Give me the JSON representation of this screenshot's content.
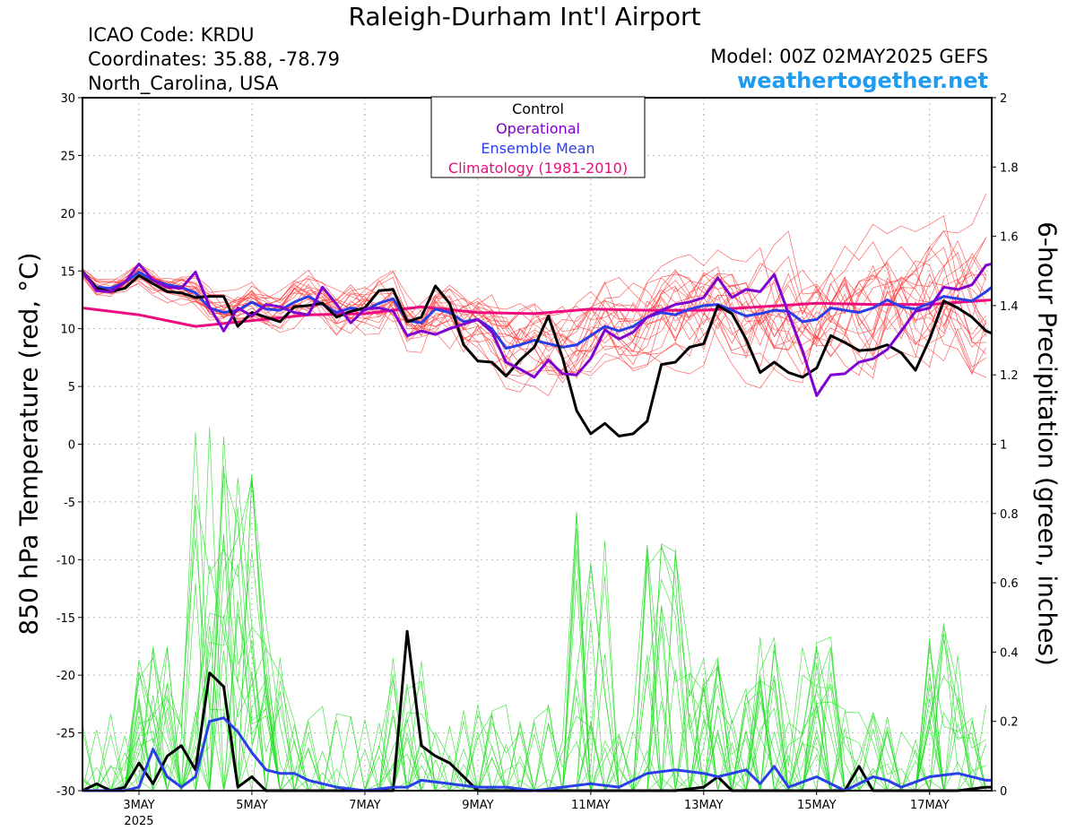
{
  "header": {
    "title": "Raleigh-Durham Int'l Airport",
    "icao": "ICAO Code: KRDU",
    "coords": "Coordinates: 35.88, -78.79",
    "region": "North_Carolina, USA",
    "model": "Model: 00Z 02MAY2025 GEFS",
    "site": "weathertogether.net"
  },
  "colors": {
    "control": "#000000",
    "operational": "#8000d0",
    "ensemble_mean": "#2a3fe8",
    "climatology": "#ec0a7e",
    "members_temp": "#ff3030",
    "members_precip": "#22dd22",
    "site": "#1f9bf0"
  },
  "chart_data": {
    "type": "line",
    "title": "Raleigh-Durham Int'l Airport",
    "ylabel_left": "850 hPa Temperature (red, °C)",
    "ylabel_right": "6-hour Precipitation (green, inches)",
    "ylim_left": [
      -30,
      30
    ],
    "ylim_right": [
      0,
      2
    ],
    "yticks_left": [
      30,
      25,
      20,
      15,
      10,
      5,
      0,
      -5,
      -10,
      -15,
      -20,
      -25,
      -30
    ],
    "yticks_right": [
      2,
      1.8,
      1.6,
      1.4,
      1.2,
      1,
      0.8,
      0.6,
      0.4,
      0.2,
      0
    ],
    "x_start_day": 2,
    "x_end_day": 18.1,
    "xticks": [
      {
        "day": 3,
        "label": "3MAY",
        "sublabel": "2025"
      },
      {
        "day": 5,
        "label": "5MAY",
        "sublabel": ""
      },
      {
        "day": 7,
        "label": "7MAY",
        "sublabel": ""
      },
      {
        "day": 9,
        "label": "9MAY",
        "sublabel": ""
      },
      {
        "day": 11,
        "label": "11MAY",
        "sublabel": ""
      },
      {
        "day": 13,
        "label": "13MAY",
        "sublabel": ""
      },
      {
        "day": 15,
        "label": "15MAY",
        "sublabel": ""
      },
      {
        "day": 17,
        "label": "17MAY",
        "sublabel": ""
      }
    ],
    "grid": true,
    "legend": {
      "placement": "top-center",
      "items": [
        "Control",
        "Operational",
        "Ensemble Mean",
        "Climatology (1981-2010)"
      ]
    },
    "temperature_series": [
      {
        "name": "Control",
        "x": [
          2,
          2.25,
          2.5,
          2.75,
          3,
          3.25,
          3.5,
          3.75,
          4,
          4.25,
          4.5,
          4.75,
          5,
          5.25,
          5.5,
          5.75,
          6,
          6.25,
          6.5,
          6.75,
          7,
          7.25,
          7.5,
          7.75,
          8,
          8.25,
          8.5,
          8.75,
          9,
          9.25,
          9.5,
          9.75,
          10,
          10.25,
          10.5,
          10.75,
          11,
          11.25,
          11.5,
          11.75,
          12,
          12.25,
          12.5,
          12.75,
          13,
          13.25,
          13.5,
          13.75,
          14,
          14.25,
          14.5,
          14.75,
          15,
          15.25,
          15.5,
          15.75,
          16,
          16.25,
          16.5,
          16.75,
          17,
          17.25,
          17.5,
          17.75,
          18,
          18.1
        ],
        "y": [
          15,
          13.5,
          13.2,
          13.5,
          14.6,
          13.9,
          13.2,
          13.1,
          12.7,
          12.8,
          12.8,
          10.2,
          11.4,
          11,
          10.6,
          11.9,
          12,
          12.2,
          11,
          11.5,
          11.8,
          13.3,
          13.4,
          10.6,
          11,
          13.7,
          12.2,
          8.6,
          7.2,
          7.1,
          5.9,
          7.3,
          8.4,
          11.1,
          7.5,
          2.9,
          0.9,
          1.8,
          0.7,
          0.9,
          2,
          6.9,
          7.1,
          8.4,
          8.7,
          12,
          11.3,
          9.1,
          6.2,
          7.1,
          6.2,
          5.8,
          6.6,
          9.4,
          8.8,
          8.1,
          8.2,
          8.6,
          7.9,
          6.4,
          9.1,
          12.4,
          11.8,
          11,
          9.8,
          9.6
        ]
      },
      {
        "name": "Operational",
        "x": [
          2,
          2.25,
          2.5,
          2.75,
          3,
          3.25,
          3.5,
          3.75,
          4,
          4.25,
          4.5,
          4.75,
          5,
          5.25,
          5.5,
          5.75,
          6,
          6.25,
          6.5,
          6.75,
          7,
          7.25,
          7.5,
          7.75,
          8,
          8.25,
          8.5,
          8.75,
          9,
          9.25,
          9.5,
          9.75,
          10,
          10.25,
          10.5,
          10.75,
          11,
          11.25,
          11.5,
          11.75,
          12,
          12.25,
          12.5,
          12.75,
          13,
          13.25,
          13.5,
          13.75,
          14,
          14.25,
          14.5,
          14.75,
          15,
          15.25,
          15.5,
          15.75,
          16,
          16.25,
          16.5,
          16.75,
          17,
          17.25,
          17.5,
          17.75,
          18,
          18.1
        ],
        "y": [
          15,
          13.3,
          13.2,
          14,
          15.6,
          14.2,
          13.6,
          13.5,
          14.9,
          11.9,
          9.8,
          11.8,
          11.1,
          12.1,
          11.9,
          11.4,
          11.2,
          13.6,
          12.1,
          10.5,
          11.7,
          11.8,
          11.5,
          9.4,
          9.8,
          9.5,
          10,
          10.4,
          10.8,
          9.7,
          7.1,
          6.5,
          5.8,
          7.3,
          6.1,
          6,
          7.4,
          9.9,
          9.1,
          9.7,
          11,
          11.6,
          12.1,
          12.3,
          12.7,
          14.4,
          12.7,
          13.4,
          13.2,
          14.7,
          11.3,
          8.1,
          4.2,
          6,
          6.1,
          7.1,
          7.4,
          8.2,
          9.8,
          11.5,
          11.8,
          13.6,
          13.4,
          13.8,
          15.5,
          15.6
        ]
      },
      {
        "name": "Ensemble Mean",
        "x": [
          2,
          2.25,
          2.5,
          2.75,
          3,
          3.25,
          3.5,
          3.75,
          4,
          4.25,
          4.5,
          4.75,
          5,
          5.25,
          5.5,
          5.75,
          6,
          6.25,
          6.5,
          6.75,
          7,
          7.25,
          7.5,
          7.75,
          8,
          8.25,
          8.5,
          8.75,
          9,
          9.25,
          9.5,
          9.75,
          10,
          10.25,
          10.5,
          10.75,
          11,
          11.25,
          11.5,
          11.75,
          12,
          12.25,
          12.5,
          12.75,
          13,
          13.25,
          13.5,
          13.75,
          14,
          14.25,
          14.5,
          14.75,
          15,
          15.25,
          15.5,
          15.75,
          16,
          16.25,
          16.5,
          16.75,
          17,
          17.25,
          17.5,
          17.75,
          18,
          18.1
        ],
        "y": [
          14.8,
          13.6,
          13.5,
          14,
          14.9,
          14.2,
          13.8,
          13.6,
          13.1,
          11.8,
          11.4,
          11.6,
          12.3,
          11.7,
          11.6,
          12.3,
          12.8,
          12.1,
          11.4,
          11.8,
          11.6,
          12.2,
          12.6,
          10.7,
          10.5,
          11.7,
          11.4,
          10.6,
          10.8,
          10,
          8.3,
          8.6,
          9,
          8.7,
          8.4,
          8.6,
          9.4,
          10.2,
          9.8,
          10.2,
          11,
          11.4,
          11.2,
          11.7,
          12,
          12.1,
          11.6,
          11.1,
          11.3,
          11.6,
          11.5,
          10.6,
          10.8,
          11.8,
          11.6,
          11.4,
          11.8,
          12.5,
          11.9,
          11.7,
          12.2,
          12.8,
          12.6,
          12.4,
          13.2,
          13.6
        ]
      },
      {
        "name": "Climatology (1981-2010)",
        "x": [
          2,
          3,
          4,
          5,
          6,
          7,
          8,
          9,
          10,
          11,
          12,
          13,
          14,
          15,
          16,
          17,
          18.1
        ],
        "y": [
          11.8,
          11.2,
          10.2,
          10.7,
          11.2,
          11.3,
          11.9,
          11.4,
          11.3,
          11.7,
          11.6,
          11.6,
          11.9,
          12.2,
          12.1,
          12.1,
          12.5
        ]
      }
    ],
    "precip_series": [
      {
        "name": "Control",
        "x": [
          2,
          2.25,
          2.5,
          2.75,
          3,
          3.25,
          3.5,
          3.75,
          4,
          4.25,
          4.5,
          4.75,
          5,
          5.25,
          5.5,
          5.75,
          6,
          6.5,
          7,
          7.25,
          7.5,
          7.75,
          8,
          8.25,
          8.5,
          8.75,
          9,
          9.5,
          10,
          10.5,
          11,
          11.5,
          12,
          12.5,
          13,
          13.25,
          13.5,
          13.75,
          14,
          14.5,
          15,
          15.5,
          15.75,
          16,
          16.25,
          16.5,
          17,
          17.5,
          18,
          18.1
        ],
        "y": [
          0,
          0.02,
          0,
          0.01,
          0.08,
          0.02,
          0.1,
          0.13,
          0.06,
          0.34,
          0.3,
          0.01,
          0.04,
          0,
          0,
          0,
          0,
          0,
          0,
          0,
          0,
          0.46,
          0.13,
          0.1,
          0.08,
          0.04,
          0,
          0,
          0,
          0,
          0,
          0,
          0,
          0,
          0.01,
          0.04,
          0,
          0,
          0,
          0,
          0,
          0,
          0.07,
          0,
          0,
          0,
          0,
          0,
          0.01,
          0.01
        ]
      },
      {
        "name": "Ensemble Mean",
        "x": [
          2,
          2.25,
          2.5,
          2.75,
          3,
          3.25,
          3.5,
          3.75,
          4,
          4.25,
          4.5,
          4.75,
          5,
          5.25,
          5.5,
          5.75,
          6,
          6.5,
          7,
          7.5,
          7.75,
          8,
          8.5,
          9,
          9.5,
          10,
          10.5,
          11,
          11.5,
          12,
          12.5,
          13,
          13.25,
          13.5,
          13.75,
          14,
          14.25,
          14.5,
          15,
          15.5,
          16,
          16.25,
          16.5,
          17,
          17.5,
          18,
          18.1
        ],
        "y": [
          0,
          0,
          0,
          0,
          0.01,
          0.12,
          0.04,
          0.01,
          0.04,
          0.2,
          0.21,
          0.17,
          0.11,
          0.06,
          0.05,
          0.05,
          0.03,
          0.01,
          0,
          0.01,
          0.01,
          0.03,
          0.02,
          0.01,
          0.01,
          0,
          0.01,
          0.02,
          0.01,
          0.05,
          0.06,
          0.05,
          0.04,
          0.05,
          0.06,
          0.02,
          0.07,
          0.01,
          0.04,
          0,
          0.04,
          0.03,
          0.01,
          0.04,
          0.05,
          0.03,
          0.03
        ]
      }
    ]
  }
}
